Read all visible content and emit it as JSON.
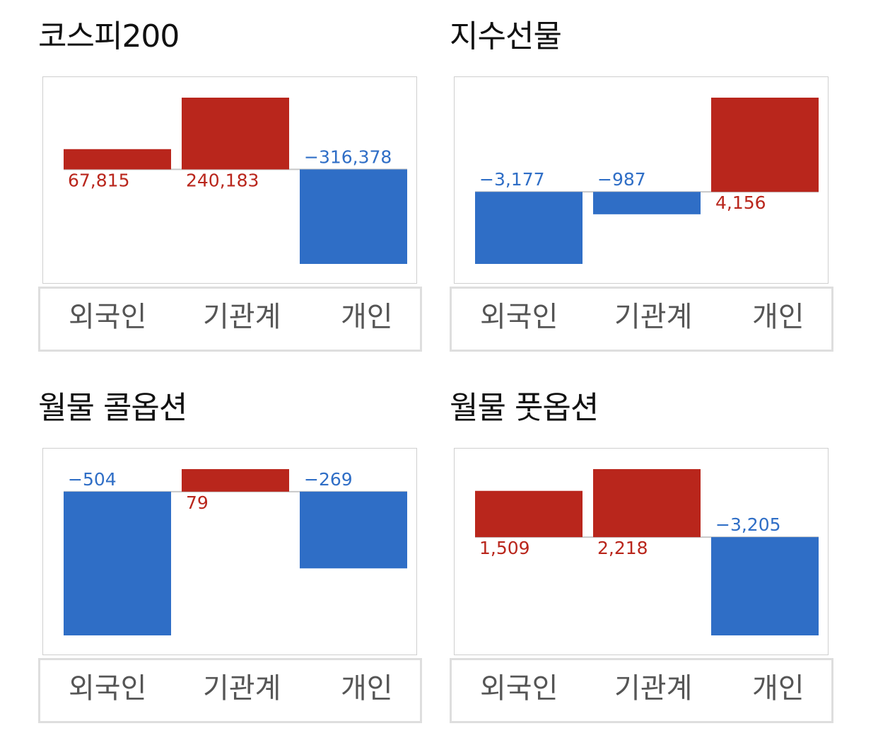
{
  "colors": {
    "positive": "#b9261c",
    "negative": "#2f6ec6",
    "baseline": "#c8c8c8"
  },
  "chart_data": [
    {
      "type": "bar",
      "title": "코스피200",
      "categories": [
        "외국인",
        "기관계",
        "개인"
      ],
      "values": [
        67815,
        240183,
        -316378
      ],
      "value_labels": [
        "67,815",
        "240,183",
        "−316,378"
      ]
    },
    {
      "type": "bar",
      "title": "지수선물",
      "categories": [
        "외국인",
        "기관계",
        "개인"
      ],
      "values": [
        -3177,
        -987,
        4156
      ],
      "value_labels": [
        "−3,177",
        "−987",
        "4,156"
      ]
    },
    {
      "type": "bar",
      "title": "월물 콜옵션",
      "categories": [
        "외국인",
        "기관계",
        "개인"
      ],
      "values": [
        -504,
        79,
        -269
      ],
      "value_labels": [
        "−504",
        "79",
        "−269"
      ]
    },
    {
      "type": "bar",
      "title": "월물 풋옵션",
      "categories": [
        "외국인",
        "기관계",
        "개인"
      ],
      "values": [
        1509,
        2218,
        -3205
      ],
      "value_labels": [
        "1,509",
        "2,218",
        "−3,205"
      ]
    }
  ]
}
